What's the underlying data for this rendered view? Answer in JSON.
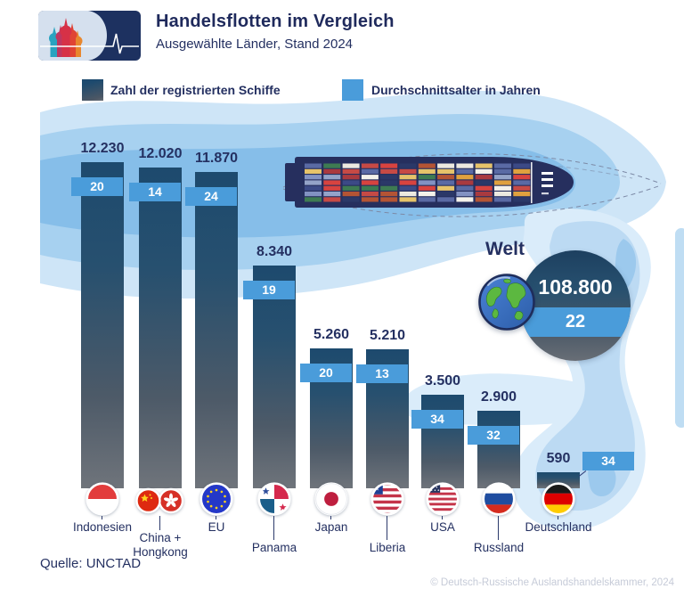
{
  "header": {
    "title": "Handelsflotten im Vergleich",
    "subtitle": "Ausgewählte Länder, Stand 2024"
  },
  "legend": {
    "ships_label": "Zahl der registrierten Schiffe",
    "age_label": "Durchschnittsalter  in Jahren"
  },
  "chart_data": {
    "type": "bar",
    "title": "Handelsflotten im Vergleich",
    "subtitle": "Ausgewählte Länder, Stand 2024",
    "categories": [
      "Indonesien",
      "China + Hongkong",
      "EU",
      "Panama",
      "Japan",
      "Liberia",
      "USA",
      "Russland",
      "Deutschland"
    ],
    "series": [
      {
        "name": "Zahl der registrierten Schiffe",
        "values": [
          12230,
          12020,
          11870,
          8340,
          5260,
          5210,
          3500,
          2900,
          590
        ]
      },
      {
        "name": "Durchschnittsalter in Jahren",
        "values": [
          20,
          14,
          24,
          19,
          20,
          13,
          34,
          32,
          34
        ]
      }
    ],
    "ylim": [
      0,
      12230
    ],
    "legend_position": "top",
    "grid": false,
    "countries": [
      {
        "label": "Indonesien",
        "display_label": "Indonesien",
        "ships": 12230,
        "ships_label": "12.230",
        "age": 20
      },
      {
        "label": "China + Hongkong",
        "display_label": "China +\nHongkong",
        "ships": 12020,
        "ships_label": "12.020",
        "age": 14
      },
      {
        "label": "EU",
        "display_label": "EU",
        "ships": 11870,
        "ships_label": "11.870",
        "age": 24
      },
      {
        "label": "Panama",
        "display_label": "Panama",
        "ships": 8340,
        "ships_label": "8.340",
        "age": 19
      },
      {
        "label": "Japan",
        "display_label": "Japan",
        "ships": 5260,
        "ships_label": "5.260",
        "age": 20
      },
      {
        "label": "Liberia",
        "display_label": "Liberia",
        "ships": 5210,
        "ships_label": "5.210",
        "age": 13
      },
      {
        "label": "USA",
        "display_label": "USA",
        "ships": 3500,
        "ships_label": "3.500",
        "age": 34
      },
      {
        "label": "Russland",
        "display_label": "Russland",
        "ships": 2900,
        "ships_label": "2.900",
        "age": 32
      },
      {
        "label": "Deutschland",
        "display_label": "Deutschland",
        "ships": 590,
        "ships_label": "590",
        "age": 34
      }
    ],
    "world": {
      "label": "Welt",
      "ships": 108800,
      "ships_label": "108.800",
      "age": 22
    }
  },
  "footer": {
    "source": "Quelle: UNCTAD",
    "copyright": "© Deutsch-Russische Auslandshandelskammer,  2024"
  },
  "colors": {
    "navy_text": "#243061",
    "bar_top": "#1d4a6e",
    "bar_bottom": "#6f747b",
    "age_badge": "#4a9cda",
    "wave_light": "#cee5f7",
    "wave_medium": "#a7d1f0",
    "wave_deep": "#86bee9",
    "hull_navy": "#262f5e",
    "copyright_gray": "#c6cbd8"
  },
  "ship": {
    "container_palette": [
      "#c64a45",
      "#a93a3f",
      "#d8433f",
      "#e0a13e",
      "#e6c36a",
      "#ece9e0",
      "#f4f2ea",
      "#8292c2",
      "#5a6aa4",
      "#3c4a86",
      "#2b3868",
      "#b45434",
      "#3e7b52",
      "#94a3c8"
    ]
  }
}
